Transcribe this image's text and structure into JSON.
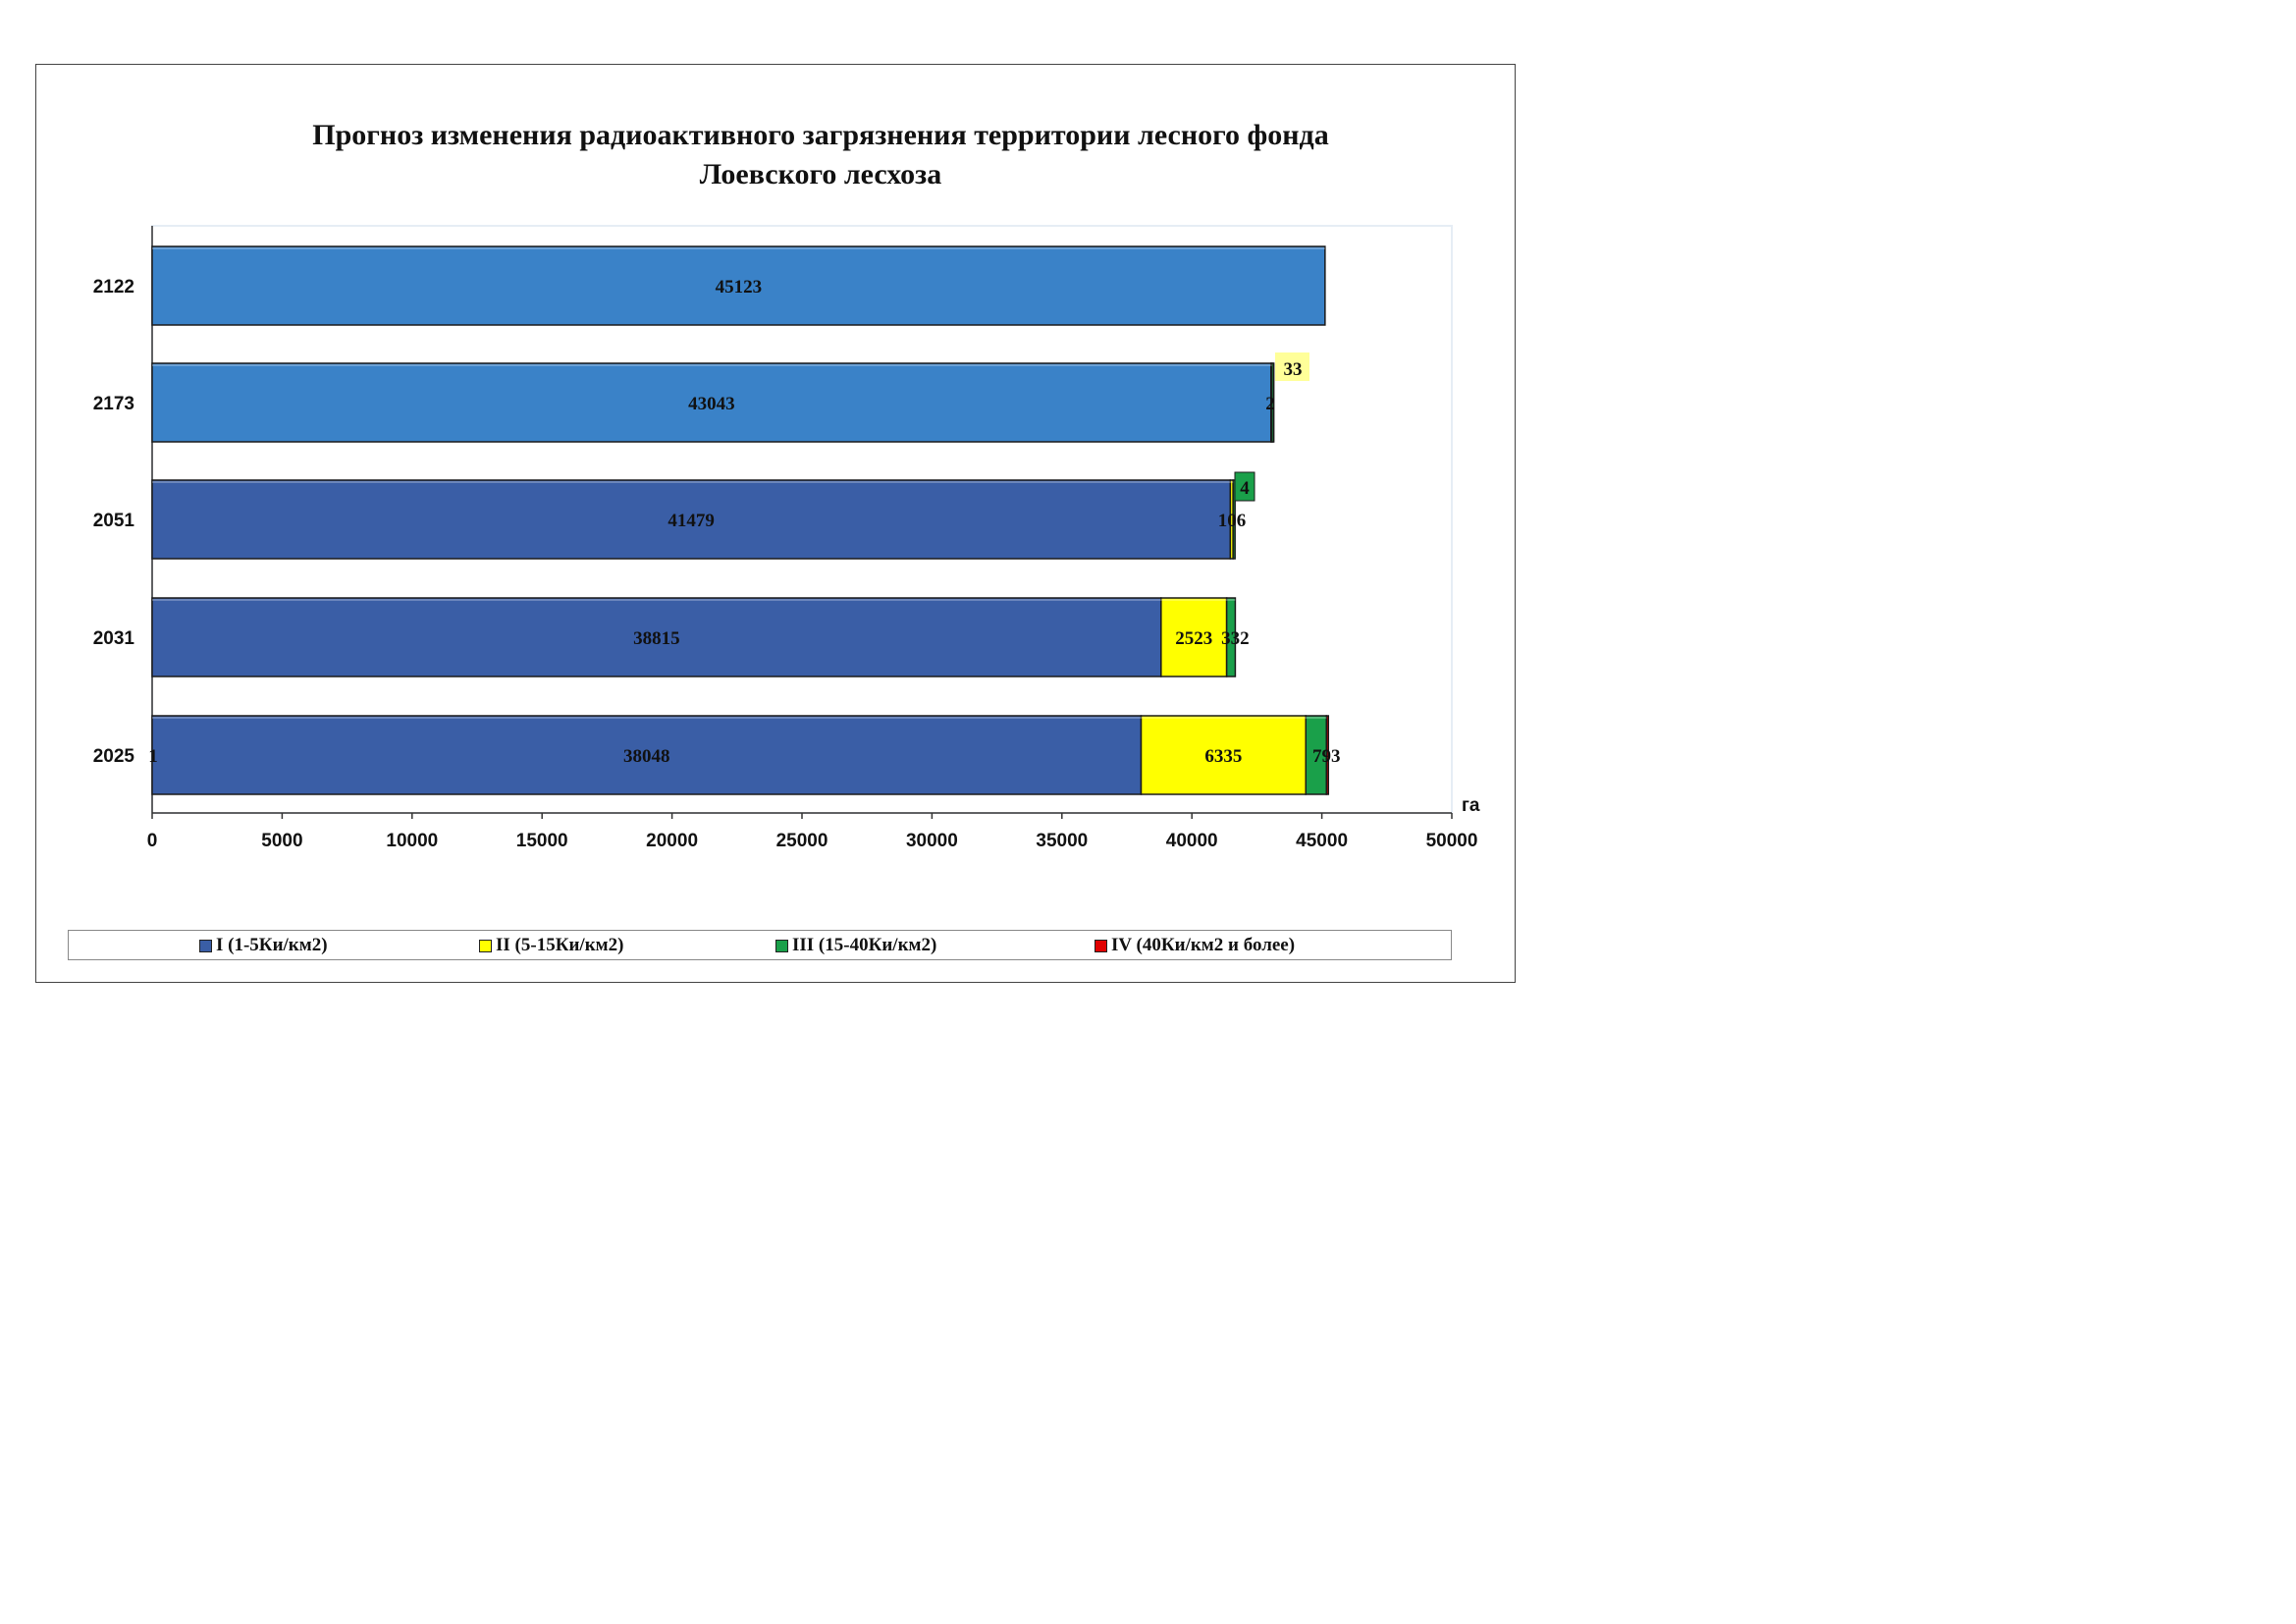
{
  "chart_data": {
    "type": "bar",
    "orientation": "horizontal",
    "stacked": true,
    "title": "Прогноз изменения радиоактивного загрязнения территории лесного фонда\nЛоевского лесхоза",
    "xlabel": "га",
    "xlim": [
      0,
      50000
    ],
    "x_ticks": [
      "0",
      "5000",
      "10000",
      "15000",
      "20000",
      "25000",
      "30000",
      "35000",
      "40000",
      "45000",
      "50000"
    ],
    "categories": [
      "2122",
      "2173",
      "2051",
      "2031",
      "2025"
    ],
    "series": [
      {
        "name": "I (1-5Ки/км2)",
        "color": "#3a62aa",
        "values": [
          45123,
          43043,
          41479,
          38815,
          38048
        ],
        "labels": [
          "45123",
          "43043",
          "41479",
          "38815",
          "38048"
        ]
      },
      {
        "name": "II (5-15Ки/км2)",
        "color": "#ffff00",
        "values": [
          0,
          33,
          106,
          2523,
          6335
        ],
        "labels": [
          "",
          "33",
          "106",
          "2523",
          "6335"
        ]
      },
      {
        "name": "III (15-40Ки/км2)",
        "color": "#1aa04a",
        "values": [
          0,
          2,
          4,
          332,
          793
        ],
        "labels": [
          "",
          "2",
          "4",
          "332",
          "793"
        ]
      },
      {
        "name": "IV (40Ки/км2 и более)",
        "color": "#e00000",
        "values": [
          0,
          0,
          0,
          0,
          1
        ],
        "labels": [
          "",
          "",
          "",
          "",
          "1"
        ]
      }
    ],
    "bar_colors_by_category": [
      "#3a82c8",
      "#3a82c8",
      "#3a5ea6",
      "#3a5ea6",
      "#3a5ea6"
    ],
    "grid": false,
    "legend": "bottom"
  }
}
